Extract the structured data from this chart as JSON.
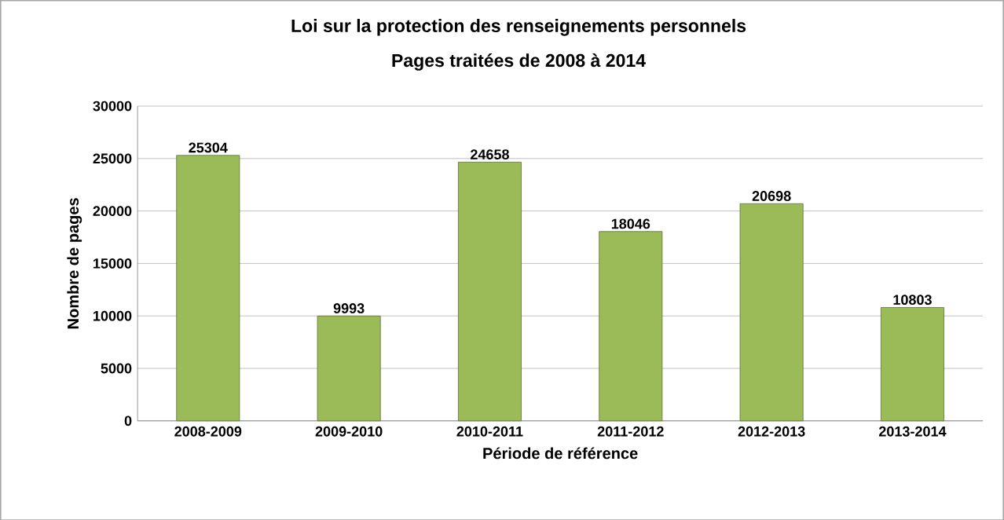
{
  "chart_data": {
    "type": "bar",
    "title": "Loi sur la protection des renseignements personnels",
    "subtitle": "Pages traitées de 2008 à 2014",
    "xlabel": "Période de référence",
    "ylabel": "Nombre de pages",
    "categories": [
      "2008-2009",
      "2009-2010",
      "2010-2011",
      "2011-2012",
      "2012-2013",
      "2013-2014"
    ],
    "values": [
      25304,
      9993,
      24658,
      18046,
      20698,
      10803
    ],
    "color": "#9bbb59",
    "ylim": [
      0,
      30000
    ],
    "yticks": [
      0,
      5000,
      10000,
      15000,
      20000,
      25000,
      30000
    ],
    "grid": "y",
    "data_labels": true
  }
}
